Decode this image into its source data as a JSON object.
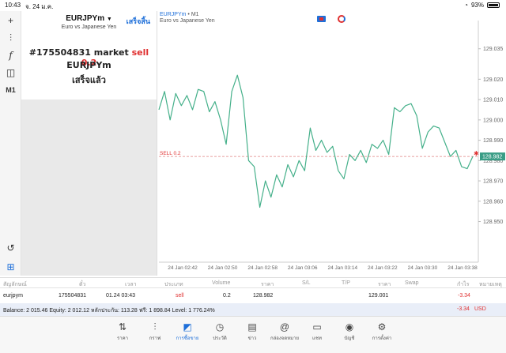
{
  "status_bar": {
    "time": "10:43",
    "date": "จ. 24 ม.ค.",
    "battery": "93%"
  },
  "toolbar": {
    "timeframe": "M1"
  },
  "order_panel": {
    "symbol": "EURJPYm",
    "description": "Euro vs Japanese Yen",
    "done_label": "เสร็จสิ้น",
    "result_prefix": "#175504831 market",
    "result_action": "sell 0.2",
    "result_symbol": "EURJPYm",
    "result_status": "เสร็จแล้ว"
  },
  "chart": {
    "symbol": "EURJPYm",
    "timeframe": "M1",
    "description": "Euro vs Japanese Yen",
    "sell_line_label": "SELL 0.2",
    "current_price_label": "128.982"
  },
  "chart_data": {
    "type": "line",
    "title": "",
    "xlabel": "",
    "ylabel": "",
    "ylim": [
      128.93,
      129.045
    ],
    "yticks": [
      "129.035",
      "129.020",
      "129.010",
      "129.000",
      "128.990",
      "128.980",
      "128.970",
      "128.960",
      "128.950"
    ],
    "xticks": [
      "24 Jan 02:42",
      "24 Jan 02:50",
      "24 Jan 02:58",
      "24 Jan 03:06",
      "24 Jan 03:14",
      "24 Jan 03:22",
      "24 Jan 03:30",
      "24 Jan 03:38"
    ],
    "sell_level": 128.982,
    "series": [
      {
        "values": [
          129.005,
          129.014,
          129.0,
          129.013,
          129.007,
          129.012,
          129.005,
          129.015,
          129.014,
          129.004,
          129.009,
          129.0,
          128.988,
          129.014,
          129.022,
          129.011,
          128.98,
          128.977,
          128.957,
          128.97,
          128.962,
          128.973,
          128.967,
          128.978,
          128.972,
          128.98,
          128.975,
          128.996,
          128.985,
          128.99,
          128.984,
          128.987,
          128.975,
          128.971,
          128.983,
          128.98,
          128.985,
          128.979,
          128.988,
          128.986,
          128.99,
          128.983,
          129.006,
          129.004,
          129.007,
          129.008,
          129.002,
          128.986,
          128.994,
          128.997,
          128.996,
          128.989,
          128.982,
          128.985,
          128.977,
          128.976,
          128.982
        ]
      }
    ]
  },
  "table": {
    "headers": [
      "สัญลักษณ์",
      "ตั๋ว",
      "เวลา",
      "ประเภท",
      "Volume",
      "ราคา",
      "S/L",
      "T/P",
      "ราคา",
      "Swap",
      "กำไร",
      "หมายเหตุ"
    ],
    "row": {
      "symbol": "eurjpym",
      "ticket": "175504831",
      "time": "01.24 03:43",
      "type": "sell",
      "volume": "0.2",
      "price": "128.982",
      "price2": "129.001",
      "profit": "-3.34"
    }
  },
  "balance": {
    "text": "Balance: 2 015.46 Equity: 2 012.12 หลักประกัน: 113.28 ฟรี: 1 898.84 Level: 1 776.24%",
    "profit": "-3.34",
    "currency": "USD"
  },
  "tabs": [
    {
      "icon": "quotes-icon",
      "label": "ราคา"
    },
    {
      "icon": "chart-icon",
      "label": "กราฟ"
    },
    {
      "icon": "trade-icon",
      "label": "การซื้อขาย"
    },
    {
      "icon": "history-icon",
      "label": "ประวัติ"
    },
    {
      "icon": "news-icon",
      "label": "ข่าว"
    },
    {
      "icon": "mailbox-icon",
      "label": "กล่องจดหมาย"
    },
    {
      "icon": "chat-icon",
      "label": "แชท"
    },
    {
      "icon": "account-icon",
      "label": "บัญชี"
    },
    {
      "icon": "settings-icon",
      "label": "การตั้งค่า"
    }
  ],
  "colors": {
    "accent": "#1e6fd9",
    "sell": "#e03030",
    "line": "#45b08a"
  }
}
